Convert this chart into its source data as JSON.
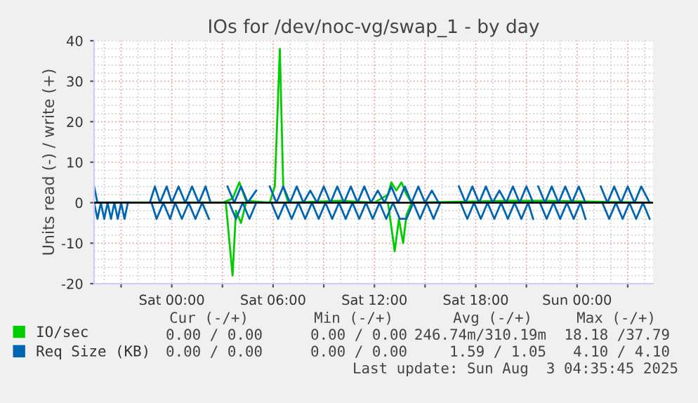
{
  "chart_data": {
    "type": "line",
    "title": "IOs for /dev/noc-vg/swap_1 - by day",
    "ylabel": "Units read (-) / write (+)",
    "xlim": [
      "2025-08-01T19:24",
      "2025-08-03T04:30"
    ],
    "ylim": [
      -20,
      40
    ],
    "yticks": [
      -20,
      -10,
      0,
      10,
      20,
      30,
      40
    ],
    "xticks": [
      {
        "value": "2025-08-01T21:00",
        "label": null
      },
      {
        "value": "2025-08-02T00:00",
        "label": "Sat 00:00"
      },
      {
        "value": "2025-08-02T03:00",
        "label": null
      },
      {
        "value": "2025-08-02T06:00",
        "label": "Sat 06:00"
      },
      {
        "value": "2025-08-02T09:00",
        "label": null
      },
      {
        "value": "2025-08-02T12:00",
        "label": "Sat 12:00"
      },
      {
        "value": "2025-08-02T15:00",
        "label": null
      },
      {
        "value": "2025-08-02T18:00",
        "label": "Sat 18:00"
      },
      {
        "value": "2025-08-02T21:00",
        "label": null
      },
      {
        "value": "2025-08-03T00:00",
        "label": "Sun 00:00"
      },
      {
        "value": "2025-08-03T03:00",
        "label": null
      }
    ],
    "grid": true,
    "legend": "bottom left",
    "line_style": "solid",
    "marker": "none",
    "ref_lines": [
      {
        "axis": "y",
        "value": 0,
        "color": "#000000"
      }
    ],
    "series": [
      {
        "name": "IO/sec",
        "color": "#00cc00",
        "x": [
          "2025-08-01T19:24",
          "2025-08-02T03:00",
          "2025-08-02T03:36",
          "2025-08-02T04:00",
          "2025-08-02T04:24",
          "2025-08-02T05:48",
          "2025-08-02T06:06",
          "2025-08-02T06:24",
          "2025-08-02T06:36",
          "2025-08-02T06:54",
          "2025-08-02T10:00",
          "2025-08-02T12:00",
          "2025-08-02T12:48",
          "2025-08-02T13:00",
          "2025-08-02T13:18",
          "2025-08-02T13:36",
          "2025-08-02T13:54",
          "2025-08-02T14:12",
          "2025-08-02T20:00",
          "2025-08-02T22:00",
          "2025-08-03T04:24"
        ],
        "values": [
          0,
          0,
          1,
          5,
          0.5,
          0,
          4,
          38,
          4,
          0,
          0.5,
          0,
          2,
          5,
          3,
          5,
          2,
          0,
          0.5,
          0.5,
          0
        ]
      },
      {
        "color": "#00cc00",
        "x": [
          "2025-08-01T19:24",
          "2025-08-02T03:12",
          "2025-08-02T03:36",
          "2025-08-02T03:48",
          "2025-08-02T04:06",
          "2025-08-02T04:24",
          "2025-08-02T12:48",
          "2025-08-02T13:00",
          "2025-08-02T13:12",
          "2025-08-02T13:27",
          "2025-08-02T13:42",
          "2025-08-02T13:54",
          "2025-08-02T14:12",
          "2025-08-03T04:24"
        ],
        "values": [
          0,
          0,
          -18,
          -2,
          -5,
          0,
          0,
          -6,
          -12,
          -4,
          -10,
          -3,
          0,
          0
        ]
      },
      {
        "name": "Req Size (KB)",
        "color": "#0066b3",
        "x": [
          "2025-08-01T19:24",
          "2025-08-01T19:36",
          "2025-08-01T20:00",
          "2025-08-01T20:24",
          "2025-08-01T20:48",
          "2025-08-01T21:12",
          "2025-08-01T21:30",
          "2025-08-01T22:00",
          "2025-08-01T22:42",
          "2025-08-01T23:00",
          "2025-08-01T23:18",
          "2025-08-01T23:42",
          "2025-08-02T00:00",
          "2025-08-02T00:24",
          "2025-08-02T00:48",
          "2025-08-02T01:12",
          "2025-08-02T01:36",
          "2025-08-02T02:00",
          "2025-08-02T02:18",
          "2025-08-02T02:48",
          "2025-08-02T03:18",
          "2025-08-02T03:42",
          "2025-08-02T04:06",
          "2025-08-02T04:30",
          "2025-08-02T05:00",
          "2025-08-02T05:24",
          "2025-08-02T05:48",
          "2025-08-02T06:12",
          "2025-08-02T06:36",
          "2025-08-02T07:00",
          "2025-08-02T07:24",
          "2025-08-02T07:48",
          "2025-08-02T08:12",
          "2025-08-02T08:36",
          "2025-08-02T09:00",
          "2025-08-02T09:24",
          "2025-08-02T09:48",
          "2025-08-02T10:12",
          "2025-08-02T10:36",
          "2025-08-02T11:00",
          "2025-08-02T11:24",
          "2025-08-02T11:48",
          "2025-08-02T12:12",
          "2025-08-02T12:36",
          "2025-08-02T13:00",
          "2025-08-02T13:24",
          "2025-08-02T13:48",
          "2025-08-02T14:12",
          "2025-08-02T14:36",
          "2025-08-02T15:00",
          "2025-08-02T15:24",
          "2025-08-02T15:48",
          "2025-08-02T16:18",
          "2025-08-02T17:00",
          "2025-08-02T17:24",
          "2025-08-02T17:48",
          "2025-08-02T18:12",
          "2025-08-02T18:36",
          "2025-08-02T19:00",
          "2025-08-02T19:24",
          "2025-08-02T19:48",
          "2025-08-02T20:12",
          "2025-08-02T20:36",
          "2025-08-02T21:00",
          "2025-08-02T21:24",
          "2025-08-02T21:33",
          "2025-08-02T21:42",
          "2025-08-02T22:06",
          "2025-08-02T22:30",
          "2025-08-02T22:54",
          "2025-08-02T23:18",
          "2025-08-02T23:42",
          "2025-08-03T00:06",
          "2025-08-03T00:30",
          "2025-08-03T01:00",
          "2025-08-03T01:24",
          "2025-08-03T01:48",
          "2025-08-03T02:12",
          "2025-08-03T02:36",
          "2025-08-03T03:00",
          "2025-08-03T03:24",
          "2025-08-03T03:48",
          "2025-08-03T04:18"
        ],
        "values": [
          4,
          0,
          0,
          0,
          0,
          0,
          0,
          null,
          0,
          4,
          0,
          4,
          0,
          4,
          0,
          4,
          0,
          4,
          0,
          null,
          4,
          0,
          4,
          0,
          3,
          null,
          4,
          0,
          4,
          0,
          4,
          0,
          3,
          0,
          4,
          0,
          4,
          0,
          4,
          0,
          4,
          0,
          3,
          0,
          4,
          0,
          4,
          0,
          4,
          0,
          3,
          0,
          null,
          4,
          0,
          4,
          0,
          4,
          0,
          3,
          0,
          4,
          0,
          4,
          0,
          null,
          4,
          0,
          4,
          0,
          4,
          0,
          4,
          0,
          null,
          4,
          0,
          4,
          0,
          4,
          0,
          4,
          0
        ]
      },
      {
        "color": "#0066b3",
        "x": [
          "2025-08-01T19:24",
          "2025-08-01T19:36",
          "2025-08-01T19:48",
          "2025-08-01T20:00",
          "2025-08-01T20:12",
          "2025-08-01T20:24",
          "2025-08-01T20:36",
          "2025-08-01T20:48",
          "2025-08-01T21:00",
          "2025-08-01T21:12",
          "2025-08-01T21:24",
          "2025-08-01T22:00",
          "2025-08-01T22:48",
          "2025-08-01T23:06",
          "2025-08-01T23:30",
          "2025-08-01T23:54",
          "2025-08-02T00:12",
          "2025-08-02T00:36",
          "2025-08-02T01:00",
          "2025-08-02T01:24",
          "2025-08-02T01:48",
          "2025-08-02T02:12",
          "2025-08-02T02:48",
          "2025-08-02T03:24",
          "2025-08-02T03:48",
          "2025-08-02T04:12",
          "2025-08-02T04:36",
          "2025-08-02T05:00",
          "2025-08-02T05:24",
          "2025-08-02T05:54",
          "2025-08-02T06:18",
          "2025-08-02T06:42",
          "2025-08-02T07:06",
          "2025-08-02T07:30",
          "2025-08-02T07:54",
          "2025-08-02T08:18",
          "2025-08-02T08:42",
          "2025-08-02T09:06",
          "2025-08-02T09:30",
          "2025-08-02T09:54",
          "2025-08-02T10:18",
          "2025-08-02T10:42",
          "2025-08-02T11:06",
          "2025-08-02T11:30",
          "2025-08-02T11:54",
          "2025-08-02T12:18",
          "2025-08-02T12:42",
          "2025-08-02T13:06",
          "2025-08-02T13:30",
          "2025-08-02T13:54",
          "2025-08-02T14:18",
          "2025-08-02T14:42",
          "2025-08-02T15:06",
          "2025-08-02T15:30",
          "2025-08-02T15:54",
          "2025-08-02T16:18",
          "2025-08-02T17:06",
          "2025-08-02T17:30",
          "2025-08-02T17:54",
          "2025-08-02T18:18",
          "2025-08-02T18:42",
          "2025-08-02T19:06",
          "2025-08-02T19:30",
          "2025-08-02T19:54",
          "2025-08-02T20:18",
          "2025-08-02T20:42",
          "2025-08-02T21:06",
          "2025-08-02T21:24",
          "2025-08-02T21:33",
          "2025-08-02T21:48",
          "2025-08-02T22:12",
          "2025-08-02T22:36",
          "2025-08-02T23:00",
          "2025-08-02T23:24",
          "2025-08-02T23:48",
          "2025-08-03T00:12",
          "2025-08-03T00:30",
          "2025-08-03T01:00",
          "2025-08-03T01:30",
          "2025-08-03T01:54",
          "2025-08-03T02:18",
          "2025-08-03T02:42",
          "2025-08-03T03:06",
          "2025-08-03T03:30",
          "2025-08-03T03:54",
          "2025-08-03T04:18"
        ],
        "values": [
          0,
          -4,
          0,
          -4,
          0,
          -4,
          0,
          -4,
          0,
          -4,
          0,
          null,
          0,
          -4,
          0,
          -4,
          0,
          -4,
          0,
          -4,
          0,
          -4,
          null,
          0,
          -4,
          0,
          -4,
          0,
          null,
          0,
          -4,
          0,
          -4,
          0,
          -4,
          0,
          -4,
          0,
          -4,
          0,
          -4,
          0,
          -4,
          0,
          -4,
          0,
          -4,
          0,
          -4,
          -4,
          0,
          -4,
          0,
          -4,
          0,
          null,
          0,
          -4,
          0,
          -4,
          0,
          -4,
          0,
          -4,
          0,
          -4,
          0,
          -4,
          null,
          0,
          -4,
          0,
          -4,
          0,
          -4,
          0,
          -4,
          null,
          0,
          -4,
          0,
          -4,
          0,
          -4,
          0,
          -4
        ]
      }
    ],
    "annotations": [
      "Cur (-/+)",
      "Min (-/+)",
      "Avg (-/+)",
      "Max (-/+)",
      "0.00 / 0.00",
      "0.00 / 0.00",
      "246.74m/310.19m",
      "18.18 /37.79",
      "0.00 / 0.00",
      "0.00 / 0.00",
      "1.59 / 1.05",
      "4.10 / 4.10",
      "Last update: Sun Aug  3 04:35:45 2025"
    ]
  }
}
